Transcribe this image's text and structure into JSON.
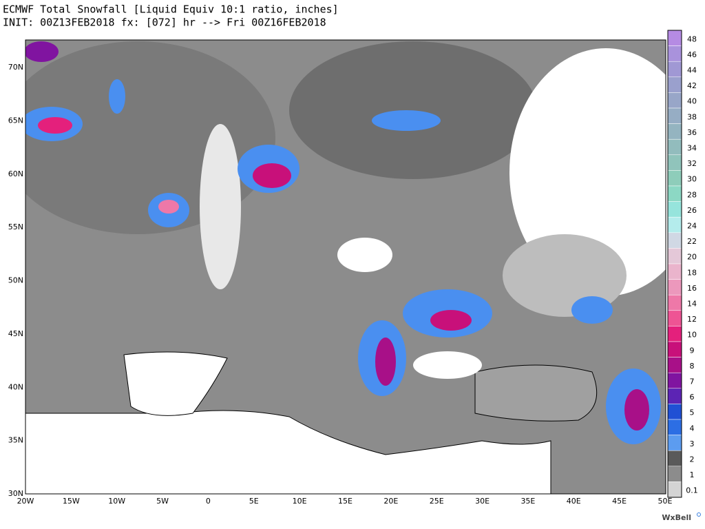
{
  "header": {
    "title": "ECMWF Total Snowfall [Liquid Equiv 10:1 ratio, inches]",
    "subtitle": "INIT: 00Z13FEB2018 fx: [072] hr --> Fri 00Z16FEB2018"
  },
  "map": {
    "lat_labels": [
      "70N",
      "65N",
      "60N",
      "55N",
      "50N",
      "45N",
      "40N",
      "35N",
      "30N"
    ],
    "lon_labels": [
      "20W",
      "15W",
      "10W",
      "5W",
      "0",
      "5E",
      "10E",
      "15E",
      "20E",
      "25E",
      "30E",
      "35E",
      "40E",
      "45E",
      "50E"
    ]
  },
  "legend": {
    "levels": [
      48,
      46,
      44,
      42,
      40,
      38,
      36,
      34,
      32,
      30,
      28,
      26,
      24,
      22,
      20,
      18,
      16,
      14,
      12,
      10,
      9,
      8,
      7,
      6,
      5,
      4,
      3,
      2,
      1,
      0.1
    ],
    "colors": [
      "#b58be3",
      "#a992dc",
      "#a098d4",
      "#9aa0cd",
      "#98a6c8",
      "#96adc4",
      "#94b4c0",
      "#92bcbd",
      "#90c4bb",
      "#8ecdba",
      "#8cd8c4",
      "#96e4dc",
      "#b4ecec",
      "#d0d8e4",
      "#e4c8d8",
      "#eab4cc",
      "#ec98bc",
      "#ee78a8",
      "#ee5494",
      "#e4207c",
      "#c8107a",
      "#a81088",
      "#8014a0",
      "#5c24b4",
      "#2050d4",
      "#2c6ee4",
      "#5c9cf0",
      "#5a5a5a",
      "#8c8c8c",
      "#d4d4d4"
    ]
  },
  "brand": "WxBell"
}
